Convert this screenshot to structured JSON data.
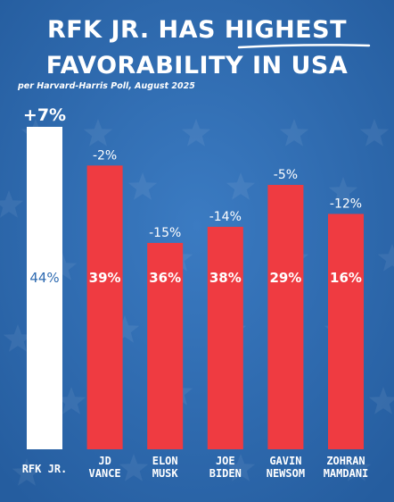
{
  "title": {
    "line1_prefix": "RFK JR. HAS ",
    "line1_highlight": "HIGHEST",
    "line2": "FAVORABILITY IN USA",
    "subtitle": "per Harvard-Harris Poll, August 2025"
  },
  "colors": {
    "background": "#2f6bb1",
    "highlight_bar": "#ffffff",
    "bars": "#ef3b41",
    "text": "#ffffff",
    "highlight_value_text": "#2f6bb1"
  },
  "chart_data": {
    "type": "bar",
    "title": "RFK JR. HAS HIGHEST FAVORABILITY IN USA",
    "subtitle": "per Harvard-Harris Poll, August 2025",
    "categories": [
      "RFK JR.",
      "JD VANCE",
      "ELON MUSK",
      "JOE BIDEN",
      "GAVIN NEWSOM",
      "ZOHRAN MAMDANI"
    ],
    "category_lines": [
      [
        "RFK JR."
      ],
      [
        "JD",
        "VANCE"
      ],
      [
        "ELON",
        "MUSK"
      ],
      [
        "JOE",
        "BIDEN"
      ],
      [
        "GAVIN",
        "NEWSOM"
      ],
      [
        "ZOHRAN",
        "MAMDANI"
      ]
    ],
    "values": [
      44,
      39,
      36,
      38,
      29,
      16
    ],
    "value_labels": [
      "44%",
      "39%",
      "36%",
      "38%",
      "29%",
      "16%"
    ],
    "bar_height_values": [
      100,
      88,
      64,
      69,
      82,
      73
    ],
    "net_labels": [
      "+7%",
      "-2%",
      "-15%",
      "-14%",
      "-5%",
      "-12%"
    ],
    "highlight_index": 0,
    "xlabel": "",
    "ylabel": "",
    "grid": false,
    "legend": "none"
  }
}
